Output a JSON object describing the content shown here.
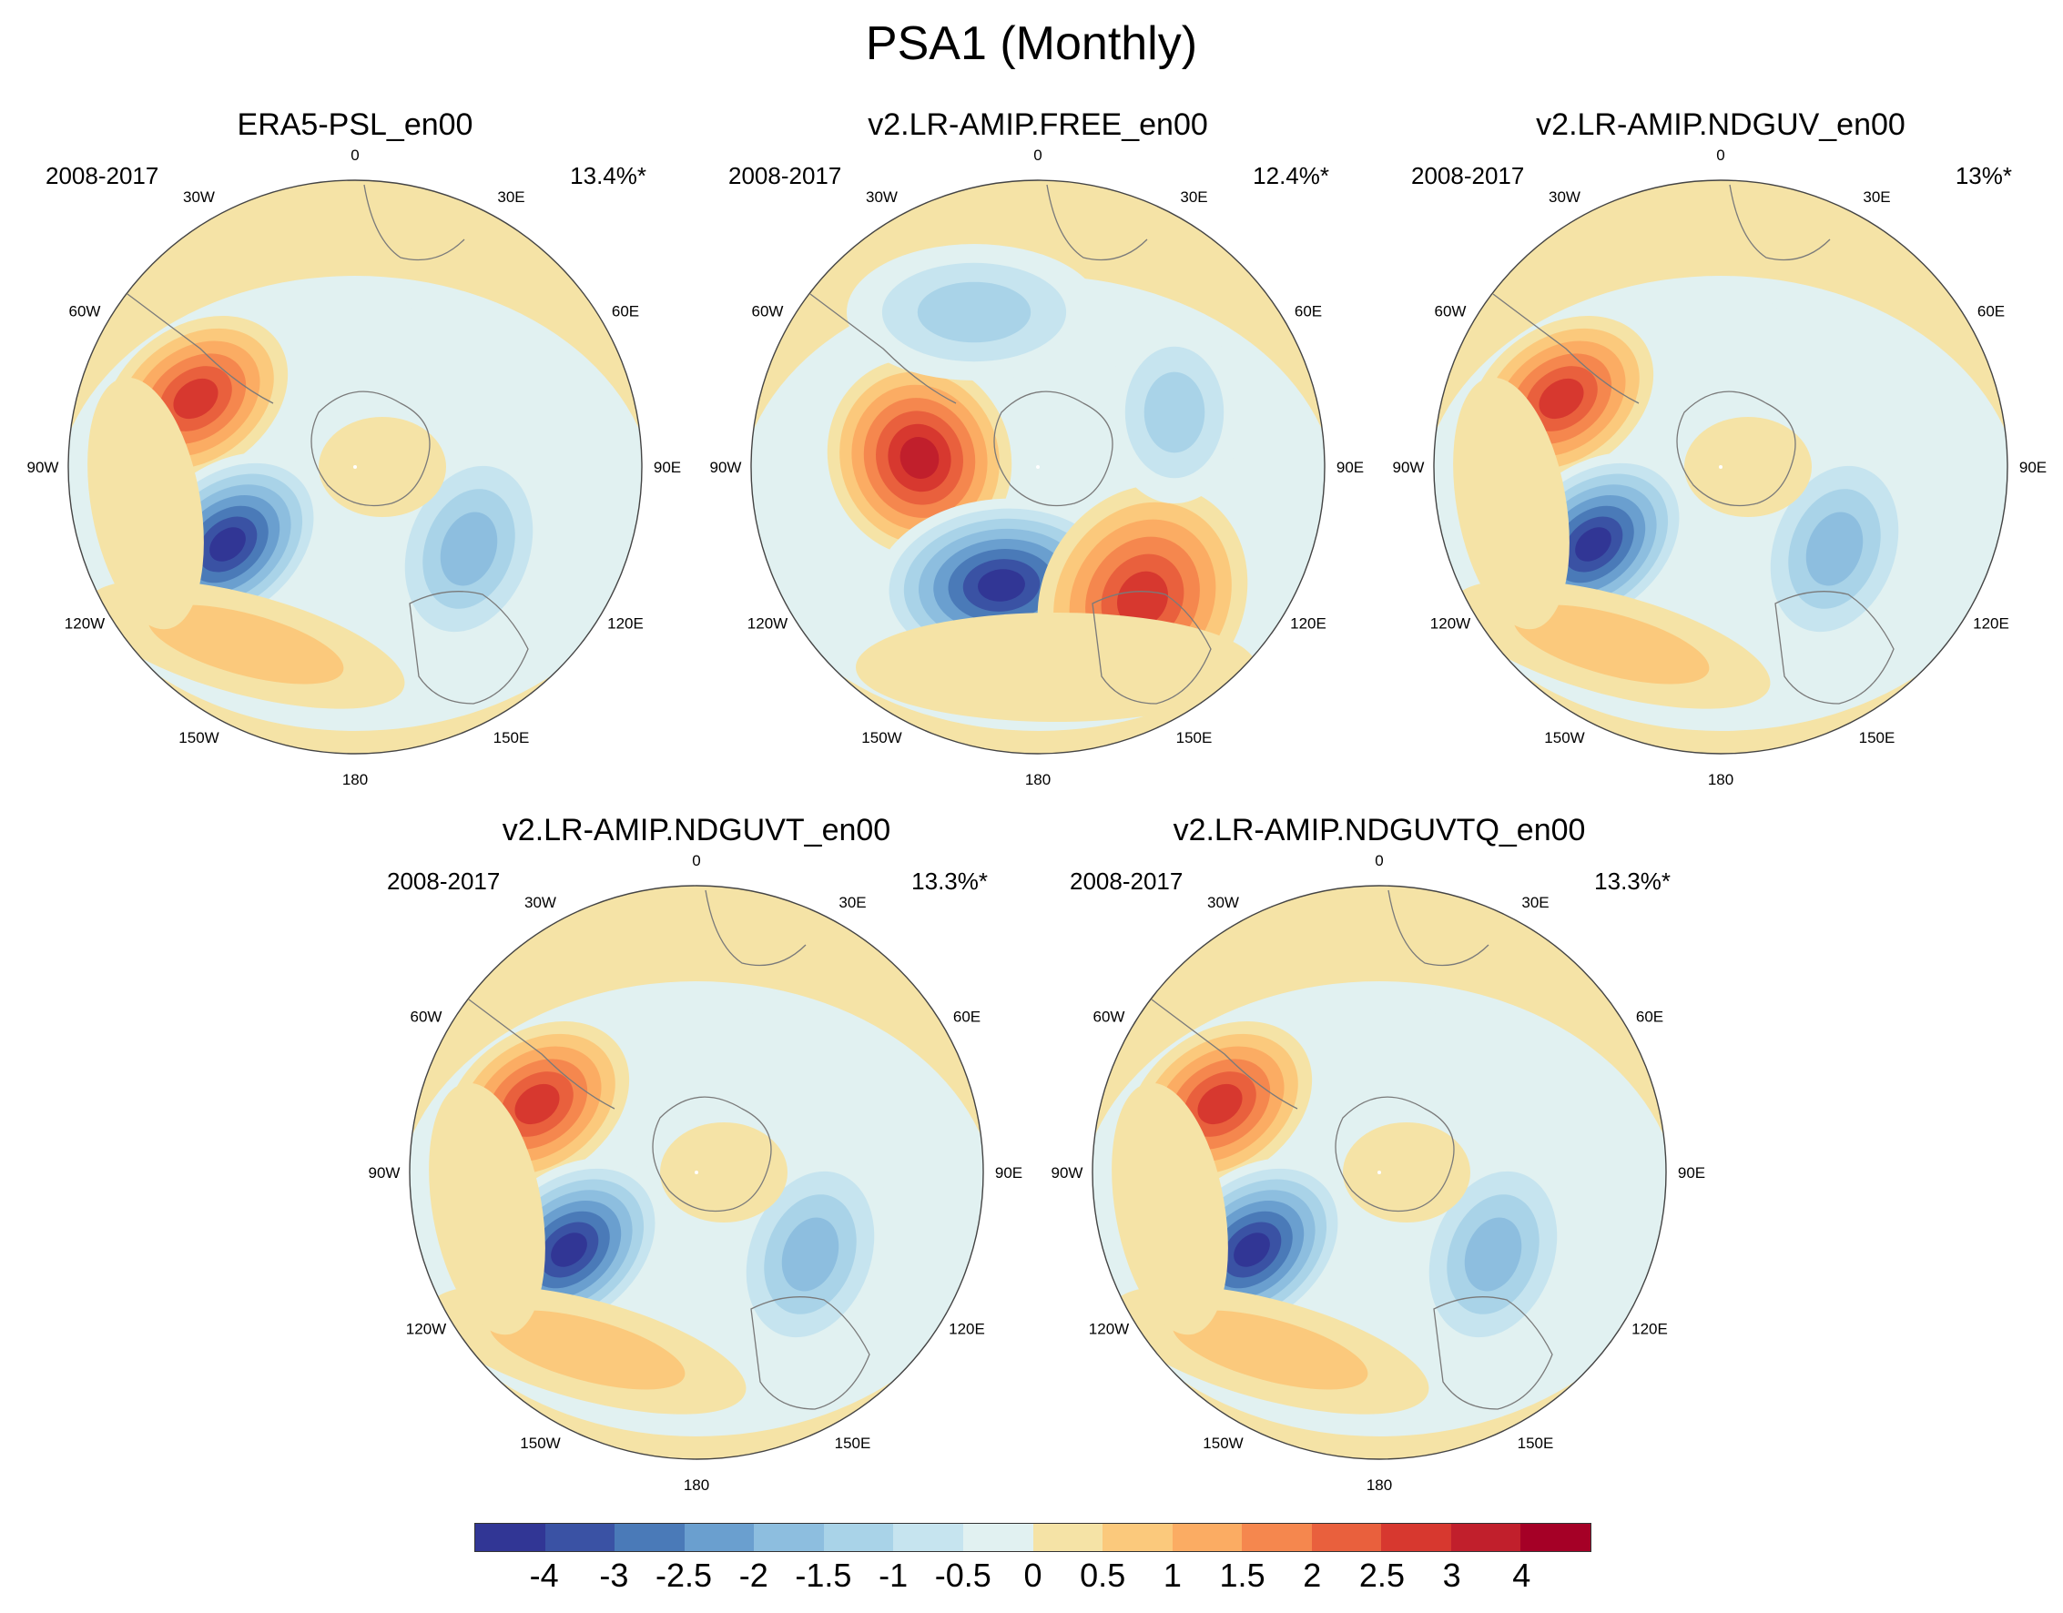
{
  "title": "PSA1 (Monthly)",
  "panels": [
    {
      "name": "ERA5-PSL_en00",
      "period": "2008-2017",
      "pct": "13.4%*"
    },
    {
      "name": "v2.LR-AMIP.FREE_en00",
      "period": "2008-2017",
      "pct": "12.4%*"
    },
    {
      "name": "v2.LR-AMIP.NDGUV_en00",
      "period": "2008-2017",
      "pct": "13%*"
    },
    {
      "name": "v2.LR-AMIP.NDGUVT_en00",
      "period": "2008-2017",
      "pct": "13.3%*"
    },
    {
      "name": "v2.LR-AMIP.NDGUVTQ_en00",
      "period": "2008-2017",
      "pct": "13.3%*"
    }
  ],
  "lon_labels": [
    "0",
    "30E",
    "60E",
    "90E",
    "120E",
    "150E",
    "180",
    "150W",
    "120W",
    "90W",
    "60W",
    "30W"
  ],
  "colorbar": {
    "labels": [
      "-4",
      "-3",
      "-2.5",
      "-2",
      "-1.5",
      "-1",
      "-0.5",
      "0",
      "0.5",
      "1",
      "1.5",
      "2",
      "2.5",
      "3",
      "4"
    ],
    "colors": [
      "#313695",
      "#3a52a4",
      "#4a7ab8",
      "#6a9fcf",
      "#8dbedf",
      "#a9d3e8",
      "#c6e4ef",
      "#e1f1f1",
      "#f5e3a6",
      "#fbc97c",
      "#fbac63",
      "#f5874e",
      "#e9603d",
      "#d7382f",
      "#c11f2c",
      "#a50026"
    ]
  }
}
